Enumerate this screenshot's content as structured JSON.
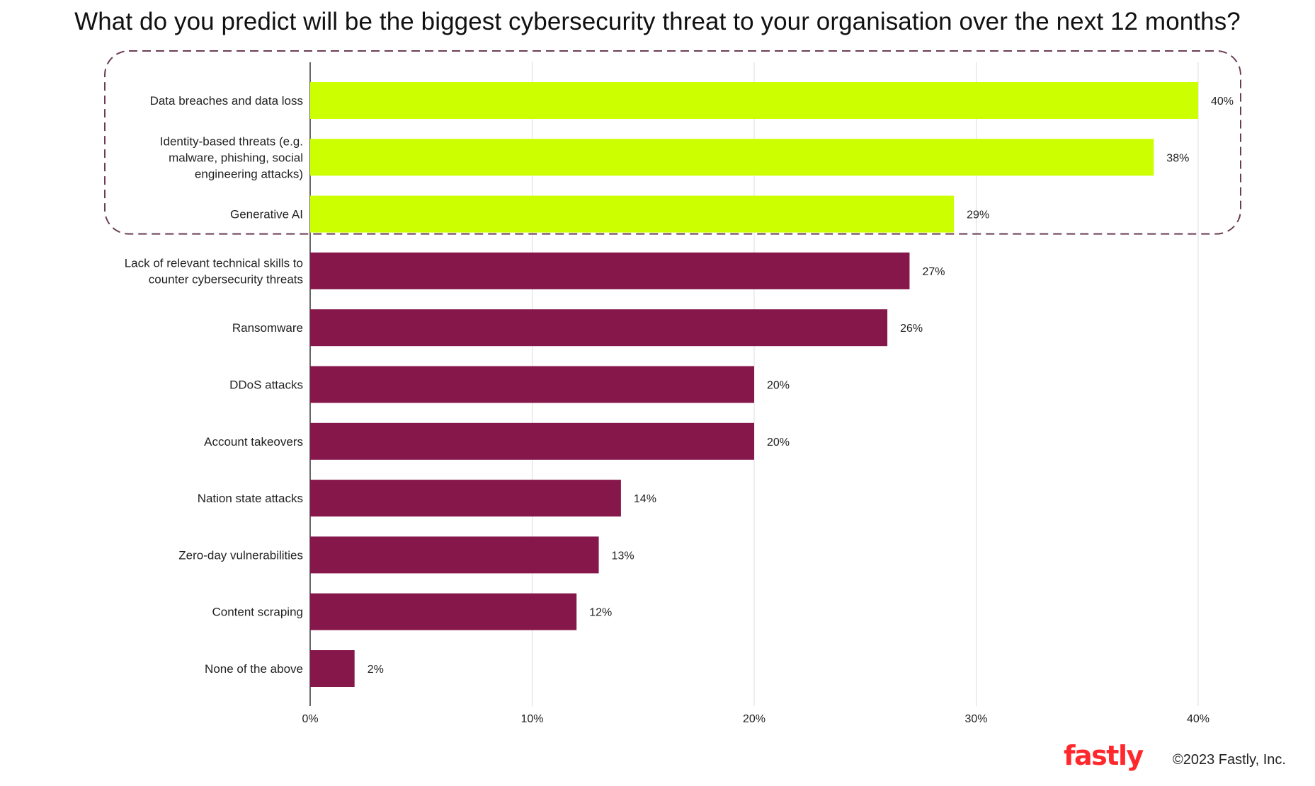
{
  "chart_data": {
    "type": "bar",
    "orientation": "horizontal",
    "title": "What do you predict will be the biggest cybersecurity threat to your organisation over the next 12 months?",
    "categories": [
      "Data breaches and data loss",
      "Identity-based threats (e.g. malware, phishing, social engineering attacks)",
      "Generative AI",
      "Lack of relevant technical skills to counter cybersecurity threats",
      "Ransomware",
      "DDoS attacks",
      "Account takeovers",
      "Nation state attacks",
      "Zero-day vulnerabilities",
      "Content scraping",
      "None of the above"
    ],
    "category_lines": [
      [
        "Data breaches and data loss"
      ],
      [
        "Identity-based threats (e.g.",
        "malware, phishing, social",
        "engineering attacks)"
      ],
      [
        "Generative AI"
      ],
      [
        "Lack of relevant technical skills to",
        "counter cybersecurity threats"
      ],
      [
        "Ransomware"
      ],
      [
        "DDoS attacks"
      ],
      [
        "Account takeovers"
      ],
      [
        "Nation state attacks"
      ],
      [
        "Zero-day vulnerabilities"
      ],
      [
        "Content scraping"
      ],
      [
        "None of the above"
      ]
    ],
    "values": [
      40,
      38,
      29,
      27,
      26,
      20,
      20,
      14,
      13,
      12,
      2
    ],
    "value_labels": [
      "40%",
      "38%",
      "29%",
      "27%",
      "26%",
      "20%",
      "20%",
      "14%",
      "13%",
      "12%",
      "2%"
    ],
    "highlighted_count": 3,
    "highlight_box": "dashed outline around the top three bars",
    "colors": {
      "highlight": "#ccff00",
      "default": "#85174b",
      "gridline": "#dddddd",
      "axis": "#333333",
      "highlight_box": "#6b3d55"
    },
    "xlim": [
      0,
      40
    ],
    "xticks": [
      0,
      10,
      20,
      30,
      40
    ],
    "xtick_labels": [
      "0%",
      "10%",
      "20%",
      "30%",
      "40%"
    ],
    "xlabel": "",
    "ylabel": "",
    "grid": "vertical"
  },
  "footer": {
    "logo_text": "fastly",
    "copyright": "©2023 Fastly, Inc."
  }
}
